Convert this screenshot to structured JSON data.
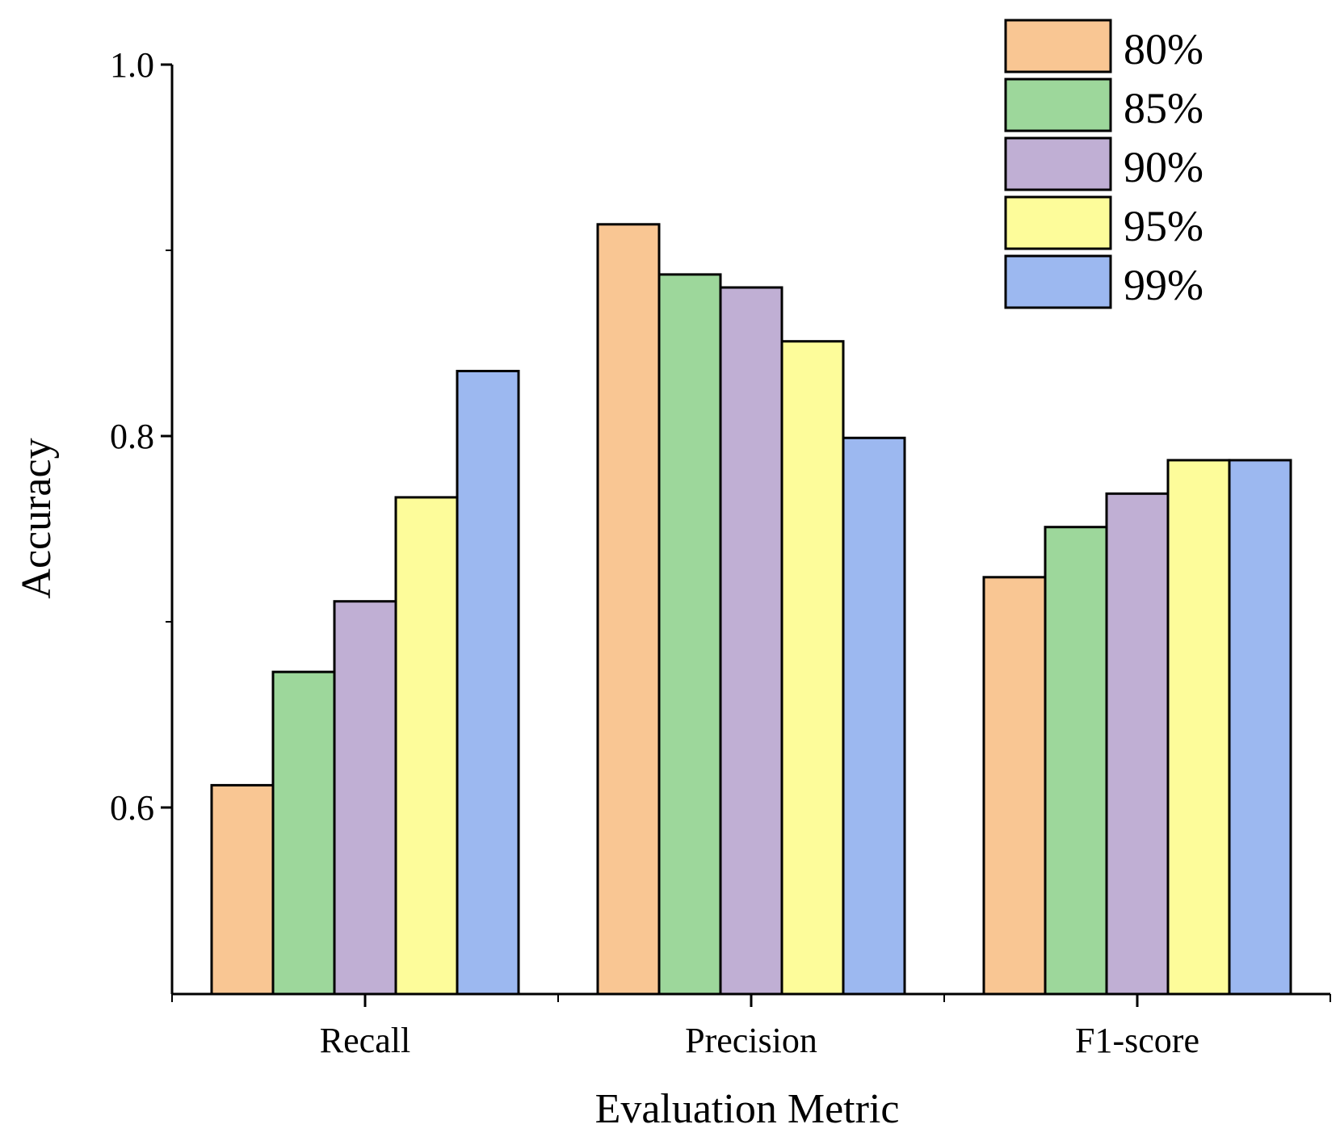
{
  "chart_data": {
    "type": "bar",
    "title": "",
    "xlabel": "Evaluation Metric",
    "ylabel": "Accuracy",
    "categories": [
      "Recall",
      "Precision",
      "F1-score"
    ],
    "ylim": [
      0.5,
      1.0
    ],
    "yticks": [
      0.6,
      0.8,
      1.0
    ],
    "ytick_labels": [
      "0.6",
      "0.8",
      "1.0"
    ],
    "series": [
      {
        "name": "80%",
        "color": "#F9C693",
        "values": [
          0.612,
          0.914,
          0.724
        ]
      },
      {
        "name": "85%",
        "color": "#9DD79B",
        "values": [
          0.673,
          0.887,
          0.751
        ]
      },
      {
        "name": "90%",
        "color": "#C0AFD4",
        "values": [
          0.711,
          0.88,
          0.769
        ]
      },
      {
        "name": "95%",
        "color": "#FDFC9A",
        "values": [
          0.767,
          0.851,
          0.787
        ]
      },
      {
        "name": "99%",
        "color": "#9CB8F0",
        "values": [
          0.835,
          0.799,
          0.787
        ]
      }
    ],
    "legend_position": "top-right"
  }
}
